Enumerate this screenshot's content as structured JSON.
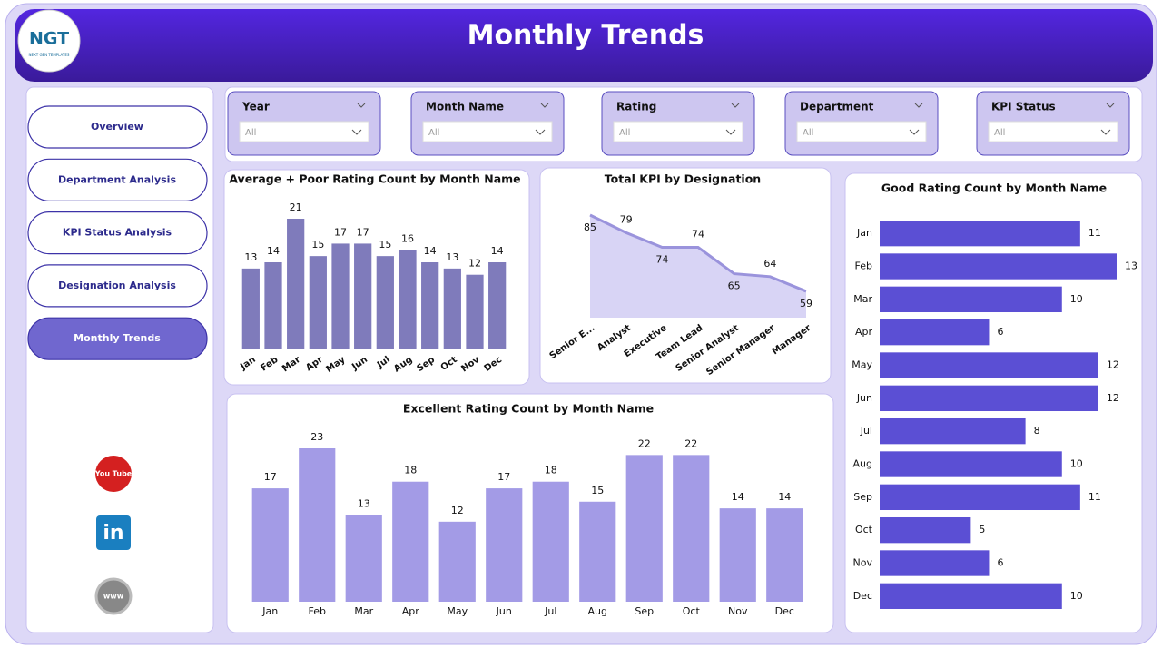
{
  "header": {
    "title": "Monthly Trends",
    "logo": "NGT",
    "logo_caption": "NEXT GEN TEMPLATES"
  },
  "nav": [
    "Overview",
    "Department Analysis",
    "KPI Status Analysis",
    "Designation Analysis",
    "Monthly Trends"
  ],
  "active_nav": 4,
  "social_icons": [
    "You Tube",
    "in",
    "www"
  ],
  "filters": [
    {
      "label": "Year",
      "value": "All"
    },
    {
      "label": "Month Name",
      "value": "All"
    },
    {
      "label": "Rating",
      "value": "All"
    },
    {
      "label": "Department",
      "value": "All"
    },
    {
      "label": "KPI Status",
      "value": "All"
    }
  ],
  "chart_data": [
    {
      "type": "bar",
      "title": "Average + Poor Rating Count by Month Name",
      "categories": [
        "Jan",
        "Feb",
        "Mar",
        "Apr",
        "May",
        "Jun",
        "Jul",
        "Aug",
        "Sep",
        "Oct",
        "Nov",
        "Dec"
      ],
      "values": [
        13,
        14,
        21,
        15,
        17,
        17,
        15,
        16,
        14,
        13,
        12,
        14
      ],
      "color": "#7f7bbb",
      "ylim": [
        0,
        21
      ]
    },
    {
      "type": "area",
      "title": "Total KPI by Designation",
      "categories": [
        "Senior E...",
        "Analyst",
        "Executive",
        "Team Lead",
        "Senior Analyst",
        "Senior Manager",
        "Manager"
      ],
      "values": [
        85,
        79,
        74,
        74,
        65,
        64,
        59
      ],
      "color": "#9a93dc",
      "ylim": [
        50,
        85
      ]
    },
    {
      "type": "bar",
      "title": "Excellent Rating Count by Month Name",
      "categories": [
        "Jan",
        "Feb",
        "Mar",
        "Apr",
        "May",
        "Jun",
        "Jul",
        "Aug",
        "Sep",
        "Oct",
        "Nov",
        "Dec"
      ],
      "values": [
        17,
        23,
        13,
        18,
        12,
        17,
        18,
        15,
        22,
        22,
        14,
        14
      ],
      "color": "#a39be6",
      "ylim": [
        0,
        23
      ]
    },
    {
      "type": "hbar",
      "title": "Good Rating Count by Month Name",
      "categories": [
        "Jan",
        "Feb",
        "Mar",
        "Apr",
        "May",
        "Jun",
        "Jul",
        "Aug",
        "Sep",
        "Oct",
        "Nov",
        "Dec"
      ],
      "values": [
        11,
        13,
        10,
        6,
        12,
        12,
        8,
        10,
        11,
        5,
        6,
        10
      ],
      "color": "#5b4fd4",
      "ylim": [
        0,
        13
      ]
    }
  ]
}
